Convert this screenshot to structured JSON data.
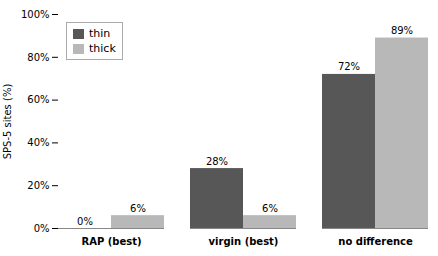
{
  "chart_data": {
    "type": "bar",
    "categories": [
      "RAP (best)",
      "virgin (best)",
      "no difference"
    ],
    "series": [
      {
        "name": "thin",
        "color": "#575757",
        "values": [
          0,
          28,
          72
        ],
        "value_labels": [
          "0%",
          "28%",
          "72%"
        ]
      },
      {
        "name": "thick",
        "color": "#b8b8b8",
        "values": [
          6,
          6,
          89
        ],
        "value_labels": [
          "6%",
          "6%",
          "89%"
        ]
      }
    ],
    "ylabel": "SPS-5 sites (%)",
    "ylim": [
      0,
      100
    ],
    "yticks": [
      {
        "value": 0,
        "label": "0%"
      },
      {
        "value": 20,
        "label": "20%"
      },
      {
        "value": 40,
        "label": "40%"
      },
      {
        "value": 60,
        "label": "60%"
      },
      {
        "value": 80,
        "label": "80%"
      },
      {
        "value": 100,
        "label": "100%"
      }
    ],
    "data_labels": true,
    "legend": "upper left",
    "grid": false
  }
}
